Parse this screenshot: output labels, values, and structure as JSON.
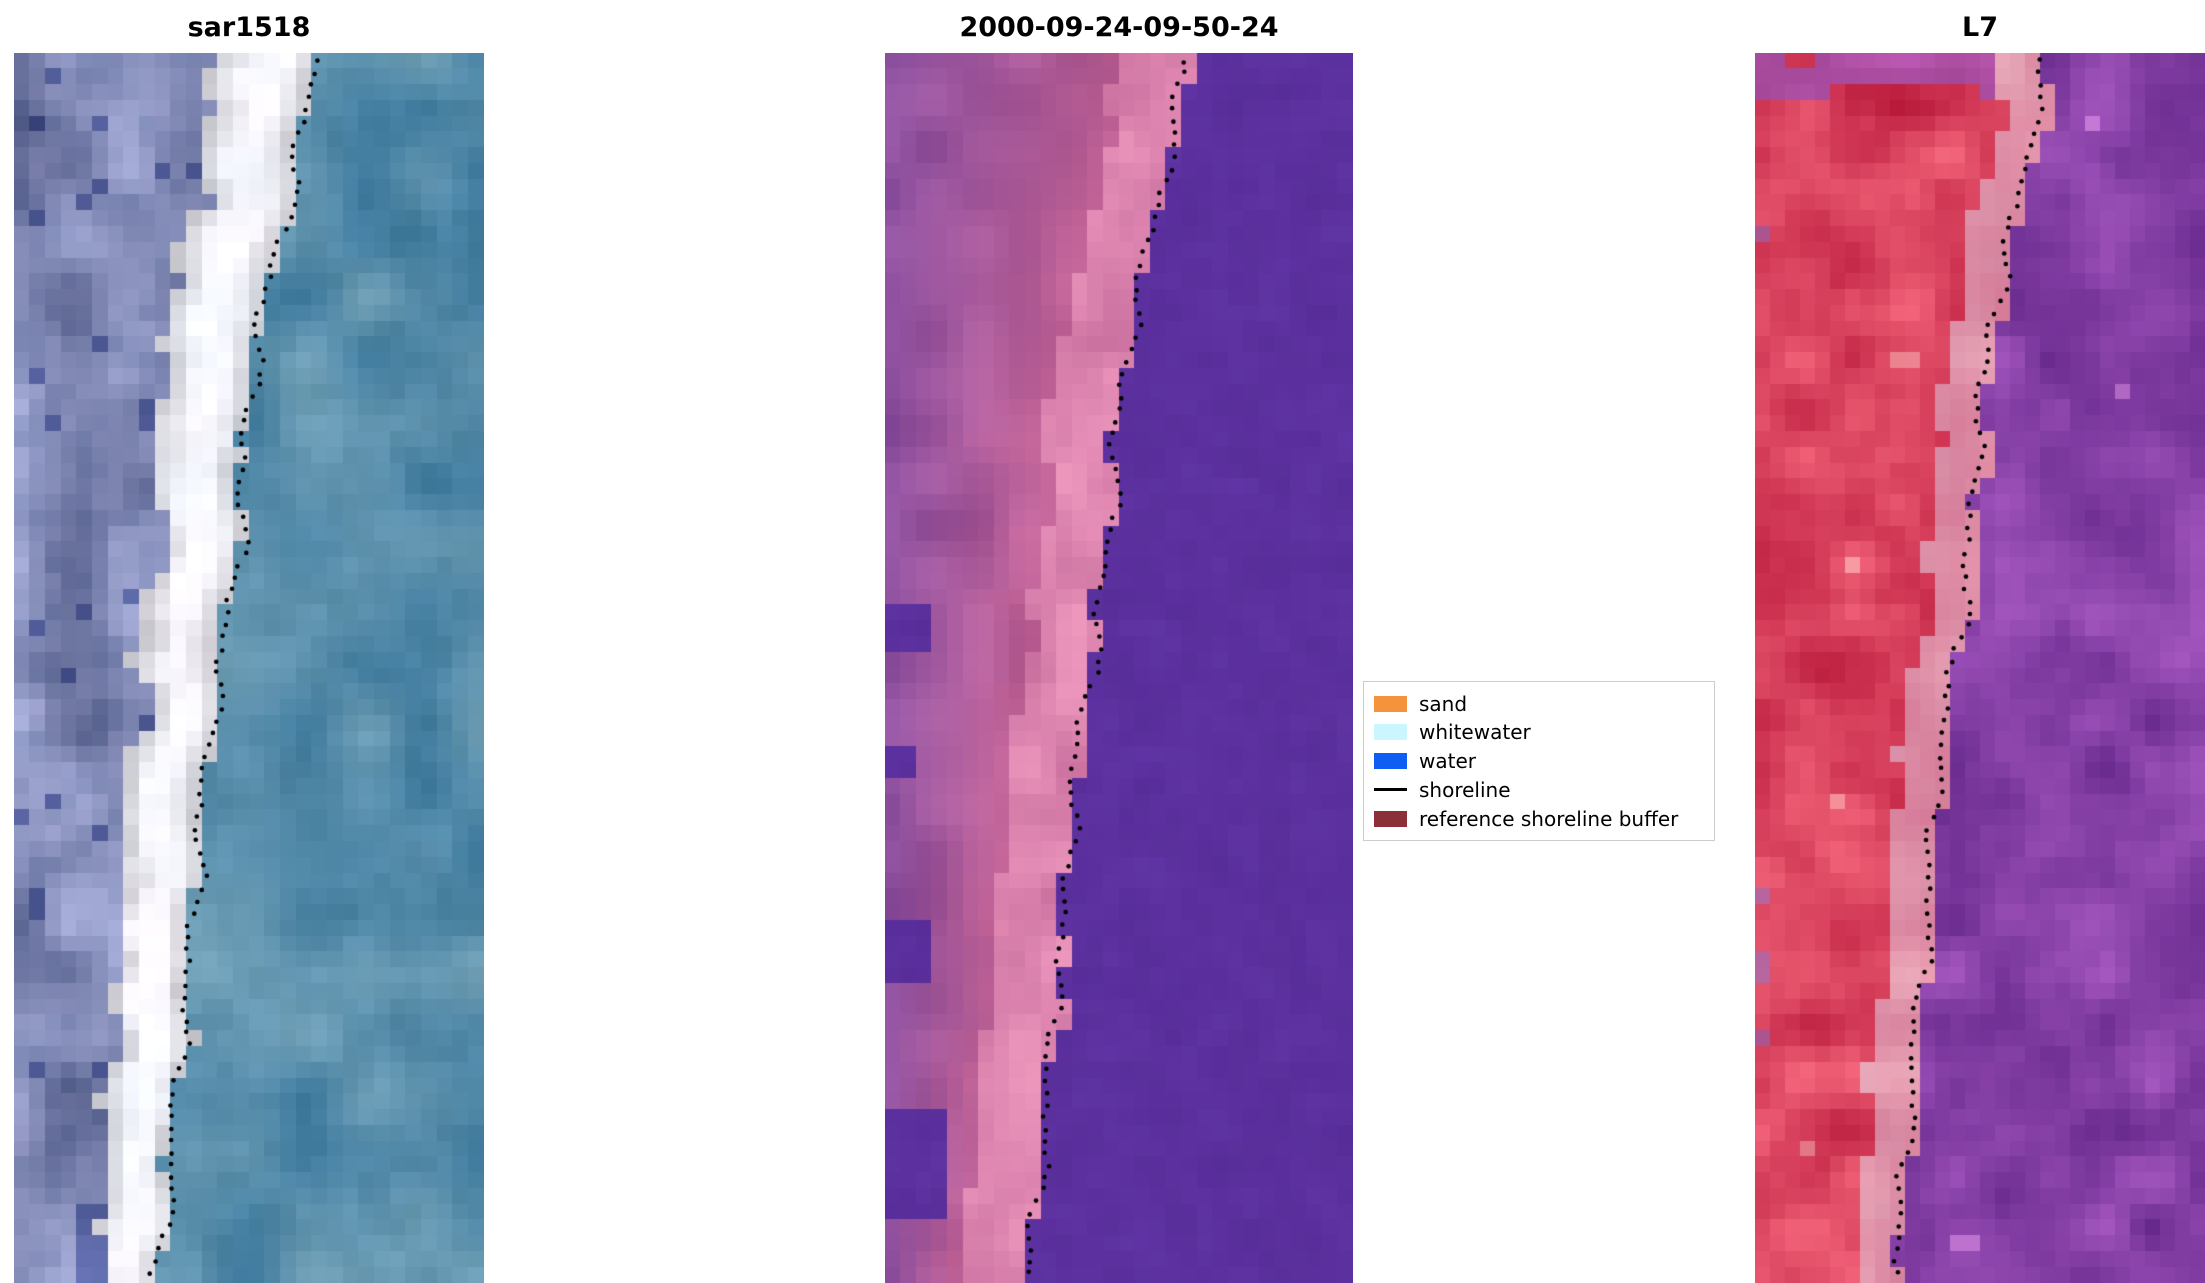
{
  "figure": {
    "panels": [
      {
        "title": "sar1518"
      },
      {
        "title": "2000-09-24-09-50-24"
      },
      {
        "title": "L7"
      }
    ],
    "legend": {
      "items": [
        {
          "label": "sand",
          "color": "#f5923e",
          "marker": "patch"
        },
        {
          "label": "whitewater",
          "color": "#ccf6ff",
          "marker": "patch"
        },
        {
          "label": "water",
          "color": "#0c5ff2",
          "marker": "patch"
        },
        {
          "label": "shoreline",
          "color": "#000000",
          "marker": "line"
        },
        {
          "label": "reference shoreline buffer",
          "color": "#8b3038",
          "marker": "patch"
        }
      ]
    }
  },
  "chart_data": {
    "type": "heatmap",
    "title": "",
    "panels": [
      {
        "title": "sar1518",
        "kind": "satellite RGB image",
        "regions": [
          "mottled slate-blue coastal land (left)",
          "bright white sand / whitewater band",
          "teal ocean (right)"
        ],
        "overlay": "dotted black detected shoreline"
      },
      {
        "title": "2000-09-24-09-50-24",
        "kind": "classified satellite image",
        "regions": [
          "magenta / pink land with scattered indigo patches near left edge",
          "bright pink nearshore band",
          "uniform indigo-purple water (right)"
        ],
        "overlay": "dotted black detected shoreline"
      },
      {
        "title": "L7",
        "kind": "false-colour Landsat 7 image",
        "regions": [
          "crimson-red land band (left)",
          "pale pink nearshore strip",
          "mottled purple ocean (right)"
        ],
        "overlay": "dotted black detected shoreline"
      }
    ],
    "legend_entries": [
      "sand",
      "whitewater",
      "water",
      "shoreline",
      "reference shoreline buffer"
    ],
    "shoreline_path": {
      "description": "normalized (y_fraction, x_fraction_of_panel_width) control points of the dotted shoreline; same trend in all three panels, running from upper-right toward lower-left",
      "points": [
        [
          0.0,
          0.645
        ],
        [
          0.1,
          0.6
        ],
        [
          0.2,
          0.535
        ],
        [
          0.3,
          0.495
        ],
        [
          0.42,
          0.475
        ],
        [
          0.5,
          0.44
        ],
        [
          0.6,
          0.4
        ],
        [
          0.7,
          0.385
        ],
        [
          0.8,
          0.355
        ],
        [
          0.9,
          0.335
        ],
        [
          1.0,
          0.305
        ]
      ]
    }
  }
}
